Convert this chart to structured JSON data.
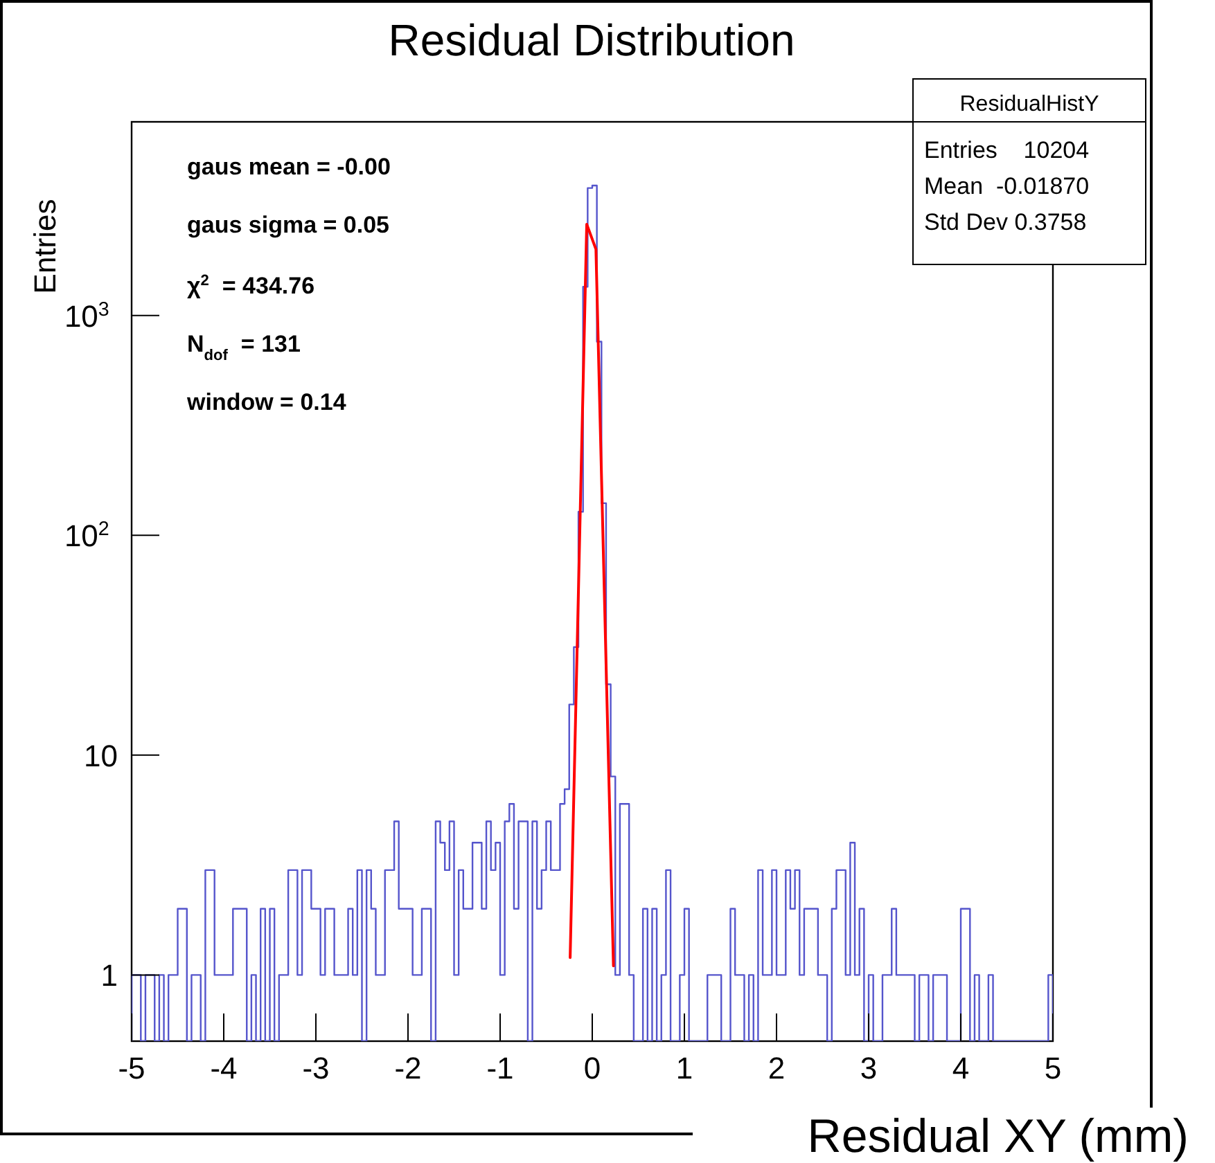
{
  "chart_data": {
    "type": "histogram",
    "title": "Residual Distribution",
    "xlabel": "Residual XY (mm)",
    "ylabel": "Entries",
    "bins": [
      -5,
      -4.95,
      -4.9,
      -4.85,
      -4.8,
      -4.75,
      -4.7,
      -4.65,
      -4.6,
      -4.55,
      -4.5,
      -4.45,
      -4.4,
      -4.35,
      -4.3,
      -4.25,
      -4.2,
      -4.15,
      -4.1,
      -4.05,
      -4,
      -3.95,
      -3.9,
      -3.85,
      -3.8,
      -3.75,
      -3.7,
      -3.65,
      -3.6,
      -3.55,
      -3.5,
      -3.45,
      -3.4,
      -3.35,
      -3.3,
      -3.25,
      -3.2,
      -3.15,
      -3.1,
      -3.05,
      -3,
      -2.95,
      -2.9,
      -2.85,
      -2.8,
      -2.75,
      -2.7,
      -2.65,
      -2.6,
      -2.55,
      -2.5,
      -2.45,
      -2.4,
      -2.35,
      -2.3,
      -2.25,
      -2.2,
      -2.15,
      -2.1,
      -2.05,
      -2,
      -1.95,
      -1.9,
      -1.85,
      -1.8,
      -1.75,
      -1.7,
      -1.65,
      -1.6,
      -1.55,
      -1.5,
      -1.45,
      -1.4,
      -1.35,
      -1.3,
      -1.25,
      -1.2,
      -1.15,
      -1.1,
      -1.05,
      -1,
      -0.95,
      -0.9,
      -0.85,
      -0.8,
      -0.75,
      -0.7,
      -0.65,
      -0.6,
      -0.55,
      -0.5,
      -0.45,
      -0.4,
      -0.35,
      -0.3,
      -0.25,
      -0.2,
      -0.15,
      -0.1,
      -0.05,
      0,
      0.05,
      0.1,
      0.15,
      0.2,
      0.25,
      0.3,
      0.35,
      0.4,
      0.45,
      0.5,
      0.55,
      0.6,
      0.65,
      0.7,
      0.75,
      0.8,
      0.85,
      0.9,
      0.95,
      1,
      1.05,
      1.1,
      1.15,
      1.2,
      1.25,
      1.3,
      1.35,
      1.4,
      1.45,
      1.5,
      1.55,
      1.6,
      1.65,
      1.7,
      1.75,
      1.8,
      1.85,
      1.9,
      1.95,
      2,
      2.05,
      2.1,
      2.15,
      2.2,
      2.25,
      2.3,
      2.35,
      2.4,
      2.45,
      2.5,
      2.55,
      2.6,
      2.65,
      2.7,
      2.75,
      2.8,
      2.85,
      2.9,
      2.95,
      3,
      3.05,
      3.1,
      3.15,
      3.2,
      3.25,
      3.3,
      3.35,
      3.4,
      3.45,
      3.5,
      3.55,
      3.6,
      3.65,
      3.7,
      3.75,
      3.8,
      3.85,
      3.9,
      3.95,
      4,
      4.05,
      4.1,
      4.15,
      4.2,
      4.25,
      4.3,
      4.35,
      4.4,
      4.45,
      4.5,
      4.55,
      4.6,
      4.65,
      4.7,
      4.75,
      4.8,
      4.85,
      4.9,
      4.95,
      5
    ],
    "series": [
      {
        "type": "histogram",
        "color": "#5555cc",
        "values": [
          1,
          1,
          null,
          1,
          1,
          null,
          1,
          null,
          1,
          1,
          2,
          2,
          null,
          1,
          1,
          null,
          3,
          3,
          1,
          1,
          1,
          1,
          2,
          2,
          2,
          null,
          1,
          null,
          2,
          null,
          2,
          null,
          1,
          1,
          3,
          3,
          1,
          3,
          3,
          2,
          2,
          1,
          2,
          2,
          1,
          1,
          1,
          2,
          1,
          3,
          null,
          3,
          2,
          1,
          1,
          3,
          3,
          5,
          2,
          2,
          2,
          1,
          1,
          2,
          2,
          null,
          5,
          4,
          3,
          5,
          1,
          3,
          2,
          2,
          4,
          4,
          2,
          5,
          3,
          4,
          1,
          5,
          6,
          2,
          5,
          5,
          null,
          5,
          2,
          3,
          5,
          3,
          3,
          6,
          7,
          17,
          31,
          128,
          1350,
          3800,
          3900,
          760,
          140,
          21,
          8,
          1,
          6,
          6,
          1,
          null,
          null,
          2,
          null,
          2,
          null,
          1,
          3,
          null,
          null,
          1,
          2,
          null,
          null,
          null,
          null,
          1,
          1,
          1,
          null,
          null,
          2,
          1,
          1,
          null,
          1,
          null,
          3,
          1,
          1,
          3,
          1,
          1,
          3,
          2,
          3,
          1,
          2,
          2,
          2,
          1,
          1,
          null,
          2,
          3,
          3,
          1,
          4,
          1,
          2,
          null,
          1,
          null,
          null,
          1,
          1,
          2,
          1,
          1,
          1,
          1,
          null,
          1,
          1,
          null,
          1,
          1,
          1,
          null,
          null,
          null,
          2,
          2,
          null,
          1,
          null,
          null,
          1,
          null,
          null,
          null,
          null,
          null,
          null,
          null,
          null,
          null,
          null,
          null,
          null,
          1
        ]
      },
      {
        "type": "line",
        "color": "#ff0000",
        "x": [
          -0.24,
          -0.06,
          0.04,
          0.23
        ],
        "values": [
          1.2,
          2600,
          2000,
          1.1
        ]
      }
    ],
    "log": true,
    "xlim": [
      -5,
      5
    ],
    "xticks": [
      -5,
      -4,
      -3,
      -2,
      -1,
      0,
      1,
      2,
      3,
      4,
      5
    ],
    "ylim": [
      0.5,
      7600
    ],
    "yticks": [
      1,
      10,
      {
        "value": 100,
        "label": "10$^{2}$"
      },
      {
        "value": 1000,
        "label": "10$^{3}$"
      }
    ],
    "annotations": [
      "gaus mean = -0.00",
      "gaus sigma = 0.05",
      "χ$^{2}$ = 434.76",
      "N$_{dof}$ = 131",
      "window = 0.14",
      "ResidualHistY",
      "Entries    10204",
      "Mean  -0.01870",
      "Std Dev 0.3758"
    ]
  }
}
